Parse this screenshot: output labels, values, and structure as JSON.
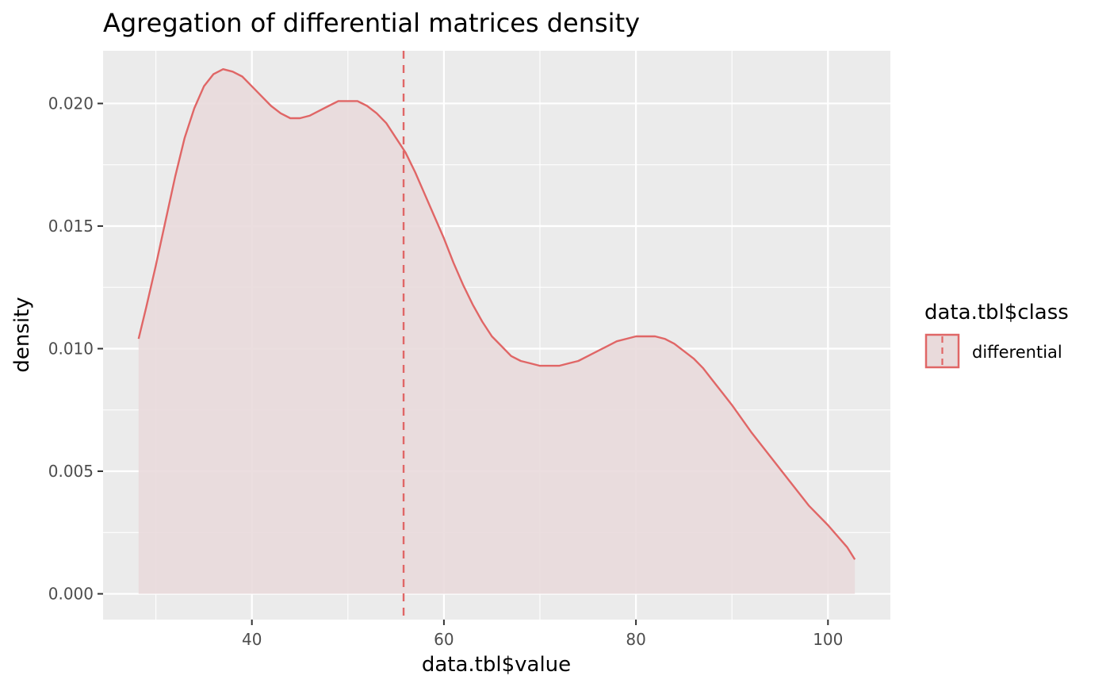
{
  "chart_data": {
    "type": "area",
    "title": "Agregation of differential matrices density",
    "xlabel": "data.tbl$value",
    "ylabel": "density",
    "xlim": [
      24.5,
      106.5
    ],
    "ylim": [
      -0.00105,
      0.02215
    ],
    "x_ticks": [
      40,
      60,
      80,
      100
    ],
    "x_tick_labels": [
      "40",
      "60",
      "80",
      "100"
    ],
    "x_minor_ticks": [
      30,
      50,
      70,
      90
    ],
    "y_ticks": [
      0.0,
      0.005,
      0.01,
      0.015,
      0.02
    ],
    "y_tick_labels": [
      "0.000",
      "0.005",
      "0.010",
      "0.015",
      "0.020"
    ],
    "y_minor_ticks": [
      0.0025,
      0.0075,
      0.0125,
      0.0175
    ],
    "grid": true,
    "legend": {
      "title": "data.tbl$class",
      "position": "right",
      "entries": [
        "differential"
      ]
    },
    "series": [
      {
        "name": "differential",
        "x": [
          28.2,
          29,
          30,
          31,
          32,
          33,
          34,
          35,
          36,
          37,
          38,
          39,
          40,
          41,
          42,
          43,
          44,
          45,
          46,
          47,
          48,
          49,
          50,
          51,
          52,
          53,
          54,
          55,
          56,
          57,
          58,
          59,
          60,
          61,
          62,
          63,
          64,
          65,
          66,
          67,
          68,
          69,
          70,
          71,
          72,
          73,
          74,
          75,
          76,
          77,
          78,
          79,
          80,
          81,
          82,
          83,
          84,
          85,
          86,
          87,
          88,
          89,
          90,
          92,
          94,
          96,
          98,
          100,
          102,
          102.8
        ],
        "y": [
          0.0104,
          0.0117,
          0.0134,
          0.0152,
          0.017,
          0.0186,
          0.0198,
          0.0207,
          0.0212,
          0.0214,
          0.0213,
          0.0211,
          0.0207,
          0.0203,
          0.0199,
          0.0196,
          0.0194,
          0.0194,
          0.0195,
          0.0197,
          0.0199,
          0.0201,
          0.0201,
          0.0201,
          0.0199,
          0.0196,
          0.0192,
          0.0186,
          0.018,
          0.0172,
          0.0163,
          0.0154,
          0.0145,
          0.0135,
          0.0126,
          0.0118,
          0.0111,
          0.0105,
          0.0101,
          0.0097,
          0.0095,
          0.0094,
          0.0093,
          0.0093,
          0.0093,
          0.0094,
          0.0095,
          0.0097,
          0.0099,
          0.0101,
          0.0103,
          0.0104,
          0.0105,
          0.0105,
          0.0105,
          0.0104,
          0.0102,
          0.0099,
          0.0096,
          0.0092,
          0.0087,
          0.0082,
          0.0077,
          0.0066,
          0.0056,
          0.0046,
          0.0036,
          0.0028,
          0.0019,
          0.0014
        ],
        "line_color": "#E06666",
        "fill_color": "#E9DADB"
      }
    ],
    "vline": {
      "x": 55.8,
      "style": "dashed",
      "color": "#E06666"
    },
    "panel_background": "#EBEBEB",
    "grid_color": "#FFFFFF"
  }
}
